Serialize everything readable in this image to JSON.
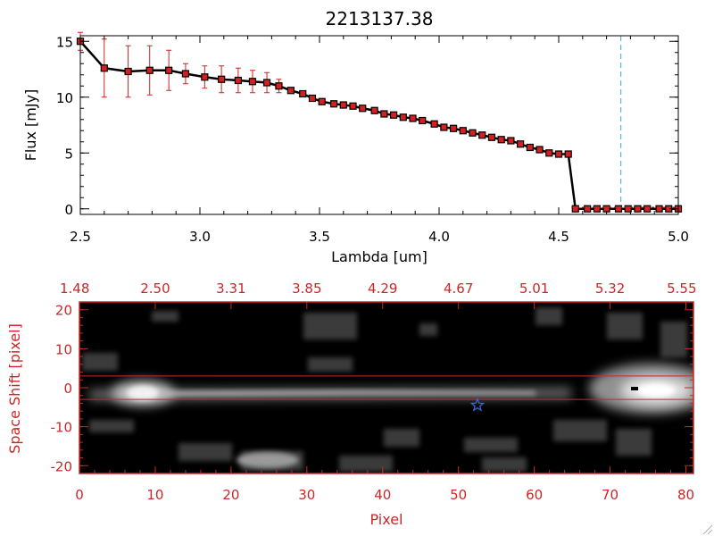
{
  "chart_data": [
    {
      "type": "line",
      "title": "2213137.38",
      "xlabel": "Lambda [um]",
      "ylabel": "Flux [mJy]",
      "xlim": [
        2.5,
        5.0
      ],
      "ylim": [
        -0.5,
        15.5
      ],
      "x_ticks": [
        "2.5",
        "3.0",
        "3.5",
        "4.0",
        "4.5",
        "5.0"
      ],
      "y_ticks": [
        "0",
        "5",
        "10",
        "15"
      ],
      "vline_x": 4.76,
      "series": [
        {
          "x": [
            2.5,
            2.6,
            2.7,
            2.79,
            2.87,
            2.94,
            3.02,
            3.09,
            3.16,
            3.22,
            3.28,
            3.33,
            3.38,
            3.43,
            3.47,
            3.51,
            3.56,
            3.6,
            3.64,
            3.68,
            3.73,
            3.77,
            3.81,
            3.85,
            3.89,
            3.93,
            3.98,
            4.02,
            4.06,
            4.1,
            4.14,
            4.18,
            4.22,
            4.26,
            4.3,
            4.34,
            4.38,
            4.42,
            4.46,
            4.5,
            4.54,
            4.57,
            4.62,
            4.66,
            4.7,
            4.75,
            4.79,
            4.83,
            4.87,
            4.92,
            4.96,
            5.0
          ],
          "y": [
            15.0,
            12.6,
            12.3,
            12.4,
            12.4,
            12.1,
            11.8,
            11.6,
            11.5,
            11.4,
            11.3,
            11.0,
            10.6,
            10.3,
            9.9,
            9.6,
            9.4,
            9.3,
            9.2,
            9.0,
            8.8,
            8.5,
            8.4,
            8.2,
            8.1,
            7.9,
            7.6,
            7.3,
            7.2,
            7.0,
            6.8,
            6.6,
            6.4,
            6.2,
            6.1,
            5.8,
            5.5,
            5.3,
            5.0,
            4.9,
            4.9,
            0.0,
            0.0,
            0.0,
            0.0,
            0.0,
            0.0,
            0.0,
            0.0,
            0.0,
            0.0,
            0.0
          ],
          "yerr": [
            0.8,
            2.6,
            2.3,
            2.2,
            1.8,
            0.9,
            1.0,
            1.2,
            1.1,
            1.0,
            0.9,
            0.6,
            0.3,
            0.3,
            0.3,
            0.3,
            0.3,
            0.3,
            0.3,
            0.3,
            0.3,
            0.3,
            0.3,
            0.3,
            0.3,
            0.3,
            0.3,
            0.3,
            0.3,
            0.3,
            0.3,
            0.3,
            0.3,
            0.3,
            0.3,
            0.3,
            0.3,
            0.3,
            0.3,
            0.3,
            0.3,
            0.2,
            0.2,
            0.2,
            0.2,
            0.2,
            0.2,
            0.2,
            0.2,
            0.2,
            0.2,
            0.2
          ]
        }
      ],
      "colors": {
        "line": "#000000",
        "marker": "#d42020",
        "errorbar": "#d42020",
        "vline": "#3aa8c8"
      }
    },
    {
      "type": "heatmap",
      "xlabel": "Pixel",
      "ylabel": "Space Shift [pixel]",
      "xlim": [
        0,
        81
      ],
      "ylim": [
        -22,
        22
      ],
      "x_ticks": [
        "0",
        "10",
        "20",
        "30",
        "40",
        "50",
        "60",
        "70",
        "80"
      ],
      "y_ticks": [
        "-20",
        "-10",
        "0",
        "10",
        "20"
      ],
      "top_axis_ticks": [
        "1.48",
        "2.50",
        "3.31",
        "3.85",
        "4.29",
        "4.67",
        "5.01",
        "5.32",
        "5.55"
      ],
      "hlines": [
        3,
        -3
      ],
      "star": {
        "x": 52.5,
        "y": -4.5
      },
      "colors": {
        "axis": "#c82828",
        "star": "#3a6ae0",
        "hline": "#c82828"
      }
    }
  ]
}
